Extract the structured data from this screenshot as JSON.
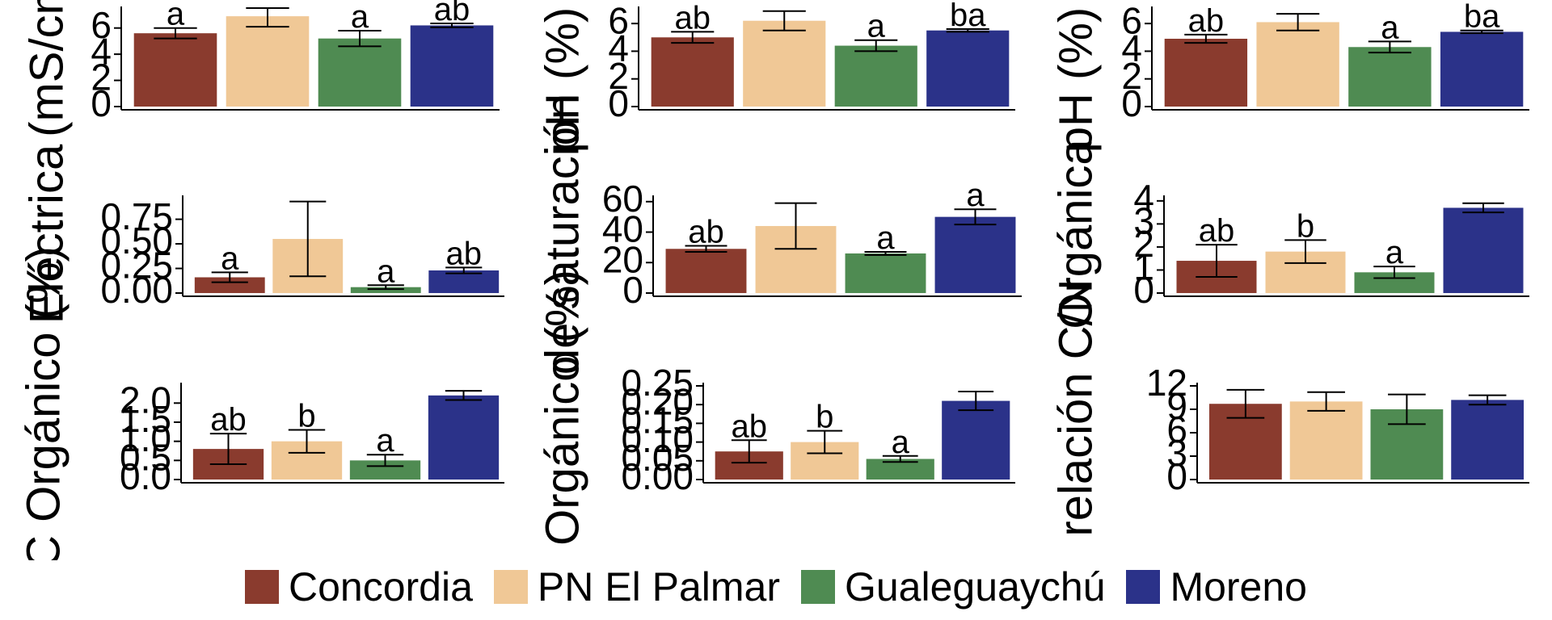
{
  "colors": {
    "Concordia": "#8a3b2e",
    "PN El Palmar": "#f0c896",
    "Gualeguaychú": "#4f8b52",
    "Moreno": "#2b3289"
  },
  "legend": {
    "items": [
      "Concordia",
      "PN El Palmar",
      "Gualeguaychú",
      "Moreno"
    ]
  },
  "chart_data": [
    {
      "type": "bar",
      "ylabel": "(mS/cm",
      "categories": [
        "Concordia",
        "PN El Palmar",
        "Gualeguaychú",
        "Moreno"
      ],
      "values": [
        5.6,
        6.9,
        5.2,
        6.2
      ],
      "errors": [
        0.4,
        0.8,
        0.6,
        0.15
      ],
      "letters": [
        "a",
        "",
        "a",
        "ab"
      ],
      "yticks": [
        0,
        2,
        4,
        6
      ],
      "ylim": [
        0,
        7.4
      ]
    },
    {
      "type": "bar",
      "ylabel": "pH (%) C",
      "categories": [
        "Concordia",
        "PN El Palmar",
        "Gualeguaychú",
        "Moreno"
      ],
      "values": [
        5.0,
        6.2,
        4.4,
        5.5
      ],
      "errors": [
        0.4,
        0.7,
        0.4,
        0.1
      ],
      "letters": [
        "ab",
        "",
        "a",
        "ba"
      ],
      "yticks": [
        0,
        2,
        4,
        6
      ],
      "ylim": [
        0,
        7.0
      ]
    },
    {
      "type": "bar",
      "ylabel": "pH (%) N",
      "categories": [
        "Concordia",
        "PN El Palmar",
        "Gualeguaychú",
        "Moreno"
      ],
      "values": [
        4.9,
        6.1,
        4.3,
        5.4
      ],
      "errors": [
        0.3,
        0.6,
        0.4,
        0.1
      ],
      "letters": [
        "ab",
        "",
        "a",
        "ba"
      ],
      "yticks": [
        0,
        2,
        4,
        6
      ],
      "ylim": [
        0,
        7.0
      ]
    },
    {
      "type": "bar",
      "ylabel": "Eléctrica",
      "categories": [
        "Concordia",
        "PN El Palmar",
        "Gualeguaychú",
        "Moreno"
      ],
      "values": [
        0.16,
        0.55,
        0.06,
        0.23
      ],
      "errors": [
        0.05,
        0.38,
        0.02,
        0.03
      ],
      "letters": [
        "a",
        "",
        "a",
        "ab"
      ],
      "yticks": [
        0,
        0.25,
        0.5,
        0.75
      ],
      "ytick_labels": [
        "0.00",
        "0.25",
        "0.50",
        "0.75"
      ],
      "ylim": [
        0,
        0.96
      ]
    },
    {
      "type": "bar",
      "ylabel": "de saturación",
      "categories": [
        "Concordia",
        "PN El Palmar",
        "Gualeguaychú",
        "Moreno"
      ],
      "values": [
        29,
        44,
        26,
        50
      ],
      "errors": [
        2,
        15,
        1,
        5
      ],
      "letters": [
        "ab",
        "",
        "a",
        "a"
      ],
      "yticks": [
        0,
        20,
        40,
        60
      ],
      "ylim": [
        0,
        62
      ]
    },
    {
      "type": "bar",
      "ylabel": "Orgánica",
      "categories": [
        "Concordia",
        "PN El Palmar",
        "Gualeguaychú",
        "Moreno"
      ],
      "values": [
        1.4,
        1.8,
        0.9,
        3.7
      ],
      "errors": [
        0.7,
        0.5,
        0.25,
        0.2
      ],
      "letters": [
        "ab",
        "b",
        "a",
        ""
      ],
      "yticks": [
        0,
        1,
        2,
        3,
        4
      ],
      "ylim": [
        0,
        4.1
      ]
    },
    {
      "type": "bar",
      "ylabel": "C Orgánico (%)",
      "categories": [
        "Concordia",
        "PN El Palmar",
        "Gualeguaychú",
        "Moreno"
      ],
      "values": [
        0.8,
        1.0,
        0.5,
        2.2
      ],
      "errors": [
        0.4,
        0.3,
        0.15,
        0.12
      ],
      "letters": [
        "ab",
        "b",
        "a",
        ""
      ],
      "yticks": [
        0,
        0.5,
        1.0,
        1.5,
        2.0
      ],
      "ytick_labels": [
        "0.0",
        "0.5",
        "1.0",
        "1.5",
        "2.0"
      ],
      "ylim": [
        0,
        2.45
      ]
    },
    {
      "type": "bar",
      "ylabel": "Orgánico (%)",
      "categories": [
        "Concordia",
        "PN El Palmar",
        "Gualeguaychú",
        "Moreno"
      ],
      "values": [
        0.075,
        0.1,
        0.055,
        0.21
      ],
      "errors": [
        0.03,
        0.03,
        0.008,
        0.025
      ],
      "letters": [
        "ab",
        "b",
        "a",
        ""
      ],
      "yticks": [
        0,
        0.05,
        0.1,
        0.15,
        0.2,
        0.25
      ],
      "ytick_labels": [
        "0.00",
        "0.05",
        "0.10",
        "0.15",
        "0.20",
        "0.25"
      ],
      "ylim": [
        0,
        0.25
      ]
    },
    {
      "type": "bar",
      "ylabel": "relación C/N",
      "categories": [
        "Concordia",
        "PN El Palmar",
        "Gualeguaychú",
        "Moreno"
      ],
      "values": [
        9.7,
        10.0,
        9.0,
        10.2
      ],
      "errors": [
        1.8,
        1.2,
        1.9,
        0.6
      ],
      "letters": [
        "",
        "",
        "",
        ""
      ],
      "yticks": [
        0,
        3,
        6,
        9,
        12
      ],
      "ylim": [
        0,
        12
      ]
    }
  ]
}
